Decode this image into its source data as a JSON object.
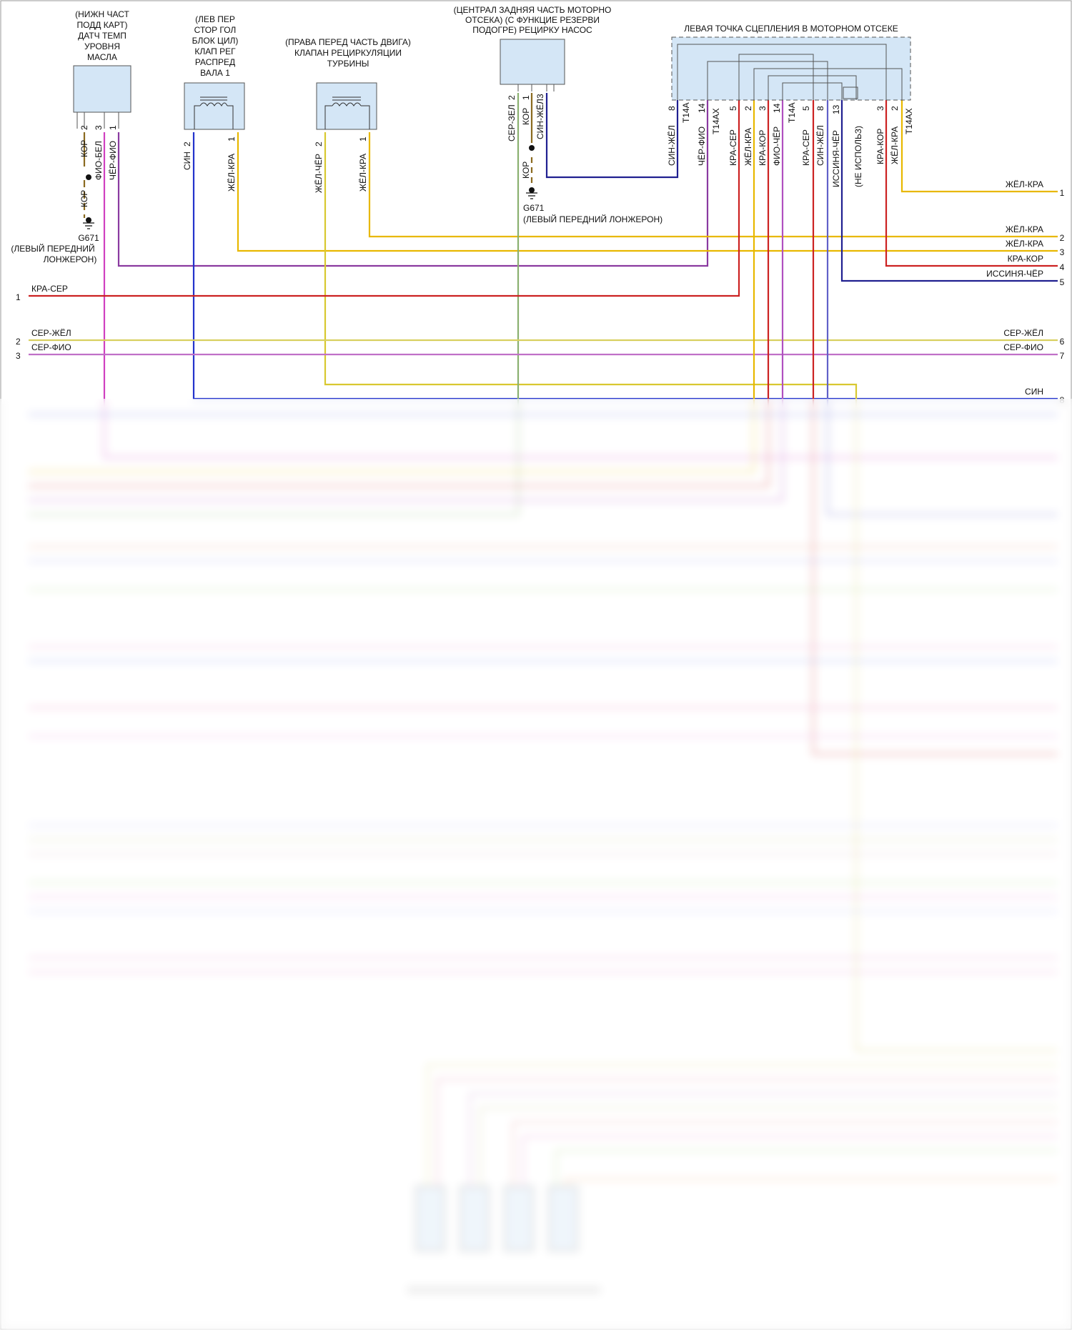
{
  "components": {
    "oil_sensor": {
      "label_lines": [
        "(НИЖН ЧАСТ",
        "ПОДД КАРТ)",
        "ДАТЧ ТЕМП",
        "УРОВНЯ",
        "МАСЛА"
      ]
    },
    "camshaft_valve": {
      "label_lines": [
        "(ЛЕВ ПЕР",
        "СТОР ГОЛ",
        "БЛОК ЦИЛ)",
        "КЛАП РЕГ",
        "РАСПРЕД",
        "ВАЛА 1"
      ]
    },
    "turbo_valve": {
      "label_lines": [
        "(ПРАВА ПЕРЕД ЧАСТЬ ДВИГА)",
        "КЛАПАН РЕЦИРКУЛЯЦИИ",
        "ТУРБИНЫ"
      ]
    },
    "pump": {
      "label_lines": [
        "(ЦЕНТРАЛ ЗАДНЯЯ ЧАСТЬ МОТОРНО",
        "ОТСЕКА) (С ФУНКЦИЕ РЕЗЕРВИ",
        "ПОДОГРЕ) РЕЦИРКУ НАСОС"
      ]
    },
    "splice": {
      "title": "ЛЕВАЯ ТОЧКА СЦЕПЛЕНИЯ В МОТОРНОМ ОТСЕКЕ"
    }
  },
  "pins": {
    "oil": [
      {
        "num": "2",
        "wire": "КОР"
      },
      {
        "num": "3",
        "wire": "ФИО-БЕЛ"
      },
      {
        "num": "1",
        "wire": "ЧЁР-ФИО"
      }
    ],
    "cam": [
      {
        "num": "2",
        "wire": "СИН"
      },
      {
        "num": "1",
        "wire": "ЖЁЛ-КРА"
      }
    ],
    "turbo": [
      {
        "num": "2",
        "wire": "ЖЁЛ-ЧЁР"
      },
      {
        "num": "1",
        "wire": "ЖЁЛ-КРА"
      }
    ],
    "pump": [
      {
        "num": "2",
        "wire": "СЕР-ЗЕЛ"
      },
      {
        "num": "1",
        "wire": "КОР"
      },
      {
        "num": "3",
        "wire": "СИН-ЖЁЛ"
      }
    ],
    "splice": [
      {
        "num": "8",
        "conn": "T14A",
        "wire": "СИН-ЖЁЛ"
      },
      {
        "num": "14",
        "conn": "T14AX",
        "wire": "ЧЁР-ФИО"
      },
      {
        "num": "5",
        "conn": "",
        "wire": "КРА-СЕР"
      },
      {
        "num": "2",
        "conn": "",
        "wire": "ЖЁЛ-КРА"
      },
      {
        "num": "3",
        "conn": "",
        "wire": "КРА-КОР"
      },
      {
        "num": "14",
        "conn": "T14A",
        "wire": "ФИО-ЧЁР"
      },
      {
        "num": "5",
        "conn": "",
        "wire": "КРА-СЕР"
      },
      {
        "num": "8",
        "conn": "",
        "wire": "СИН-ЖЁЛ"
      },
      {
        "num": "13",
        "conn": "",
        "wire": "ИССИНЯ-ЧЁР"
      },
      {
        "num": "",
        "conn": "",
        "wire": "(НЕ ИСПОЛЬЗ)"
      },
      {
        "num": "3",
        "conn": "",
        "wire": "КРА-КОР"
      },
      {
        "num": "2",
        "conn": "T14AX",
        "wire": "ЖЁЛ-КРА"
      }
    ]
  },
  "grounds": {
    "g1": {
      "wire": "КОР",
      "id": "G671",
      "location_lines": [
        "(ЛЕВЫЙ ПЕРЕДНИЙ",
        "ЛОНЖЕРОН)"
      ]
    },
    "g2": {
      "id": "G671",
      "location": "(ЛЕВЫЙ ПЕРЕДНИЙ ЛОНЖЕРОН)"
    }
  },
  "left_wires": [
    {
      "num": "1",
      "label": "КРА-СЕР",
      "color": "#cc2222"
    },
    {
      "num": "2",
      "label": "СЕР-ЖЁЛ",
      "color": "#d8d060"
    },
    {
      "num": "3",
      "label": "СЕР-ФИО",
      "color": "#c070c8"
    }
  ],
  "right_wires": [
    {
      "num": "1",
      "label": "ЖЁЛ-КРА",
      "color": "#e8b800"
    },
    {
      "num": "2",
      "label": "ЖЁЛ-КРА",
      "color": "#e8b800"
    },
    {
      "num": "3",
      "label": "ЖЁЛ-КРА",
      "color": "#e8b800"
    },
    {
      "num": "4",
      "label": "КРА-КОР",
      "color": "#cc2222"
    },
    {
      "num": "5",
      "label": "ИССИНЯ-ЧЁР",
      "color": "#202090"
    },
    {
      "num": "6",
      "label": "СЕР-ЖЁЛ",
      "color": "#d8d060"
    },
    {
      "num": "7",
      "label": "СЕР-ФИО",
      "color": "#c070c8"
    },
    {
      "num": "8",
      "label": "СИН",
      "color": "#2233cc"
    }
  ],
  "colors": {
    "blue": "#2233cc",
    "yellow": "#e8b800",
    "purple": "#8a3aa0",
    "red": "#cc2222",
    "green": "#8ab070",
    "navy": "#202090",
    "magenta": "#d040c0",
    "brown": "#8a6a20",
    "component_fill": "#d4e6f6",
    "component_stroke": "#555555"
  }
}
